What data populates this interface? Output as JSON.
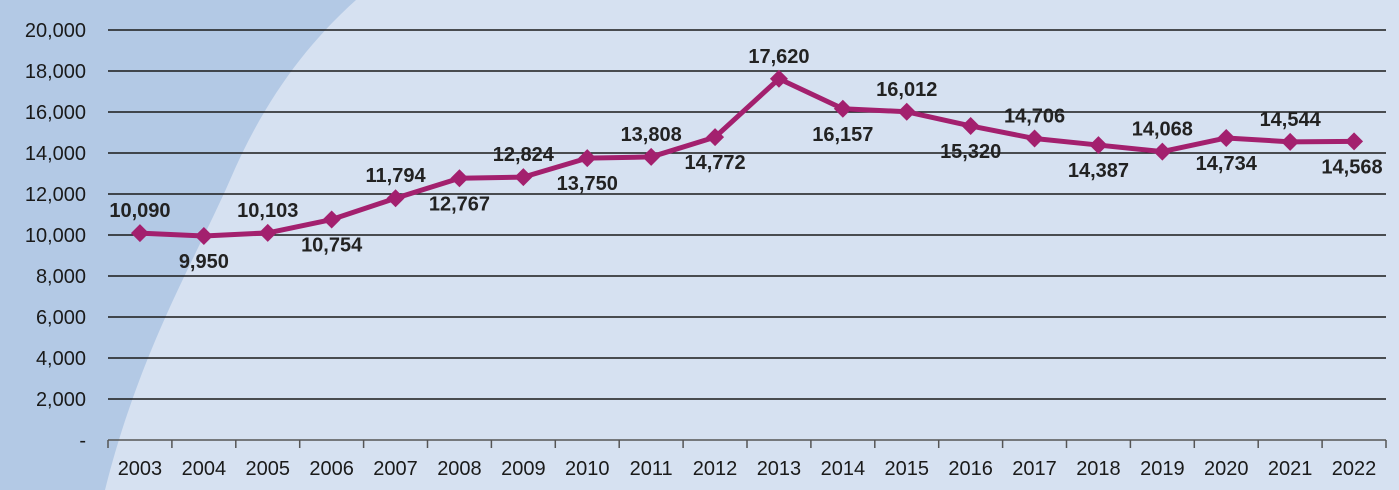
{
  "chart_data": {
    "type": "line",
    "title": "",
    "xlabel": "",
    "ylabel": "",
    "ylim": [
      0,
      20000
    ],
    "y_ticks": [
      "-",
      "2,000",
      "4,000",
      "6,000",
      "8,000",
      "10,000",
      "12,000",
      "14,000",
      "16,000",
      "18,000",
      "20,000"
    ],
    "grid": true,
    "categories": [
      "2003",
      "2004",
      "2005",
      "2006",
      "2007",
      "2008",
      "2009",
      "2010",
      "2011",
      "2012",
      "2013",
      "2014",
      "2015",
      "2016",
      "2017",
      "2018",
      "2019",
      "2020",
      "2021",
      "2022"
    ],
    "series": [
      {
        "values": [
          10090,
          9950,
          10103,
          10754,
          11794,
          12767,
          12824,
          13750,
          13808,
          14772,
          17620,
          16157,
          16012,
          15320,
          14706,
          14387,
          14068,
          14734,
          14544,
          14568
        ],
        "labels": [
          "10,090",
          "9,950",
          "10,103",
          "10,754",
          "11,794",
          "12,767",
          "12,824",
          "13,750",
          "13,808",
          "14,772",
          "17,620",
          "16,157",
          "16,012",
          "15,320",
          "14,706",
          "14,387",
          "14,068",
          "14,734",
          "14,544",
          "14,568"
        ],
        "color": "#a3206e",
        "marker": "diamond"
      }
    ],
    "colors": {
      "background": "#d6e1f1",
      "corner": "#b3c9e5",
      "grid": "#1a1a1a"
    }
  }
}
